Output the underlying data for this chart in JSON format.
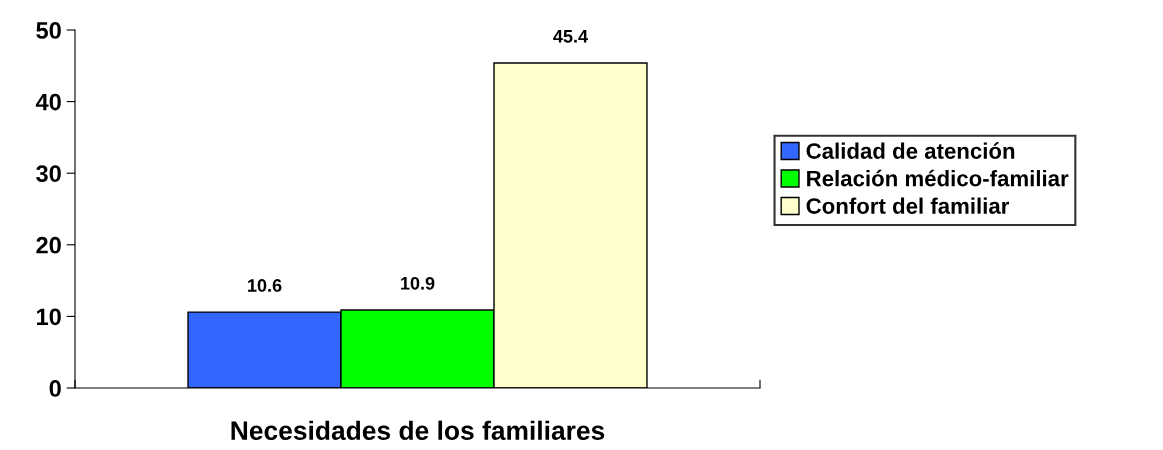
{
  "chart_data": {
    "type": "bar",
    "xlabel": "Necesidades de los familiares",
    "categories": [
      null
    ],
    "series": [
      {
        "name": "Calidad de atención",
        "color": "#3366ff",
        "values": [
          10.6
        ]
      },
      {
        "name": "Relación médico-familiar",
        "color": "#00ff00",
        "values": [
          10.9
        ]
      },
      {
        "name": "Confort del familiar",
        "color": "#ffffcc",
        "values": [
          45.4
        ]
      }
    ],
    "ylim": [
      0,
      50
    ],
    "yticks": [
      0,
      10,
      20,
      30,
      40,
      50
    ],
    "data_labels": true,
    "legend": "right",
    "grid": false
  }
}
